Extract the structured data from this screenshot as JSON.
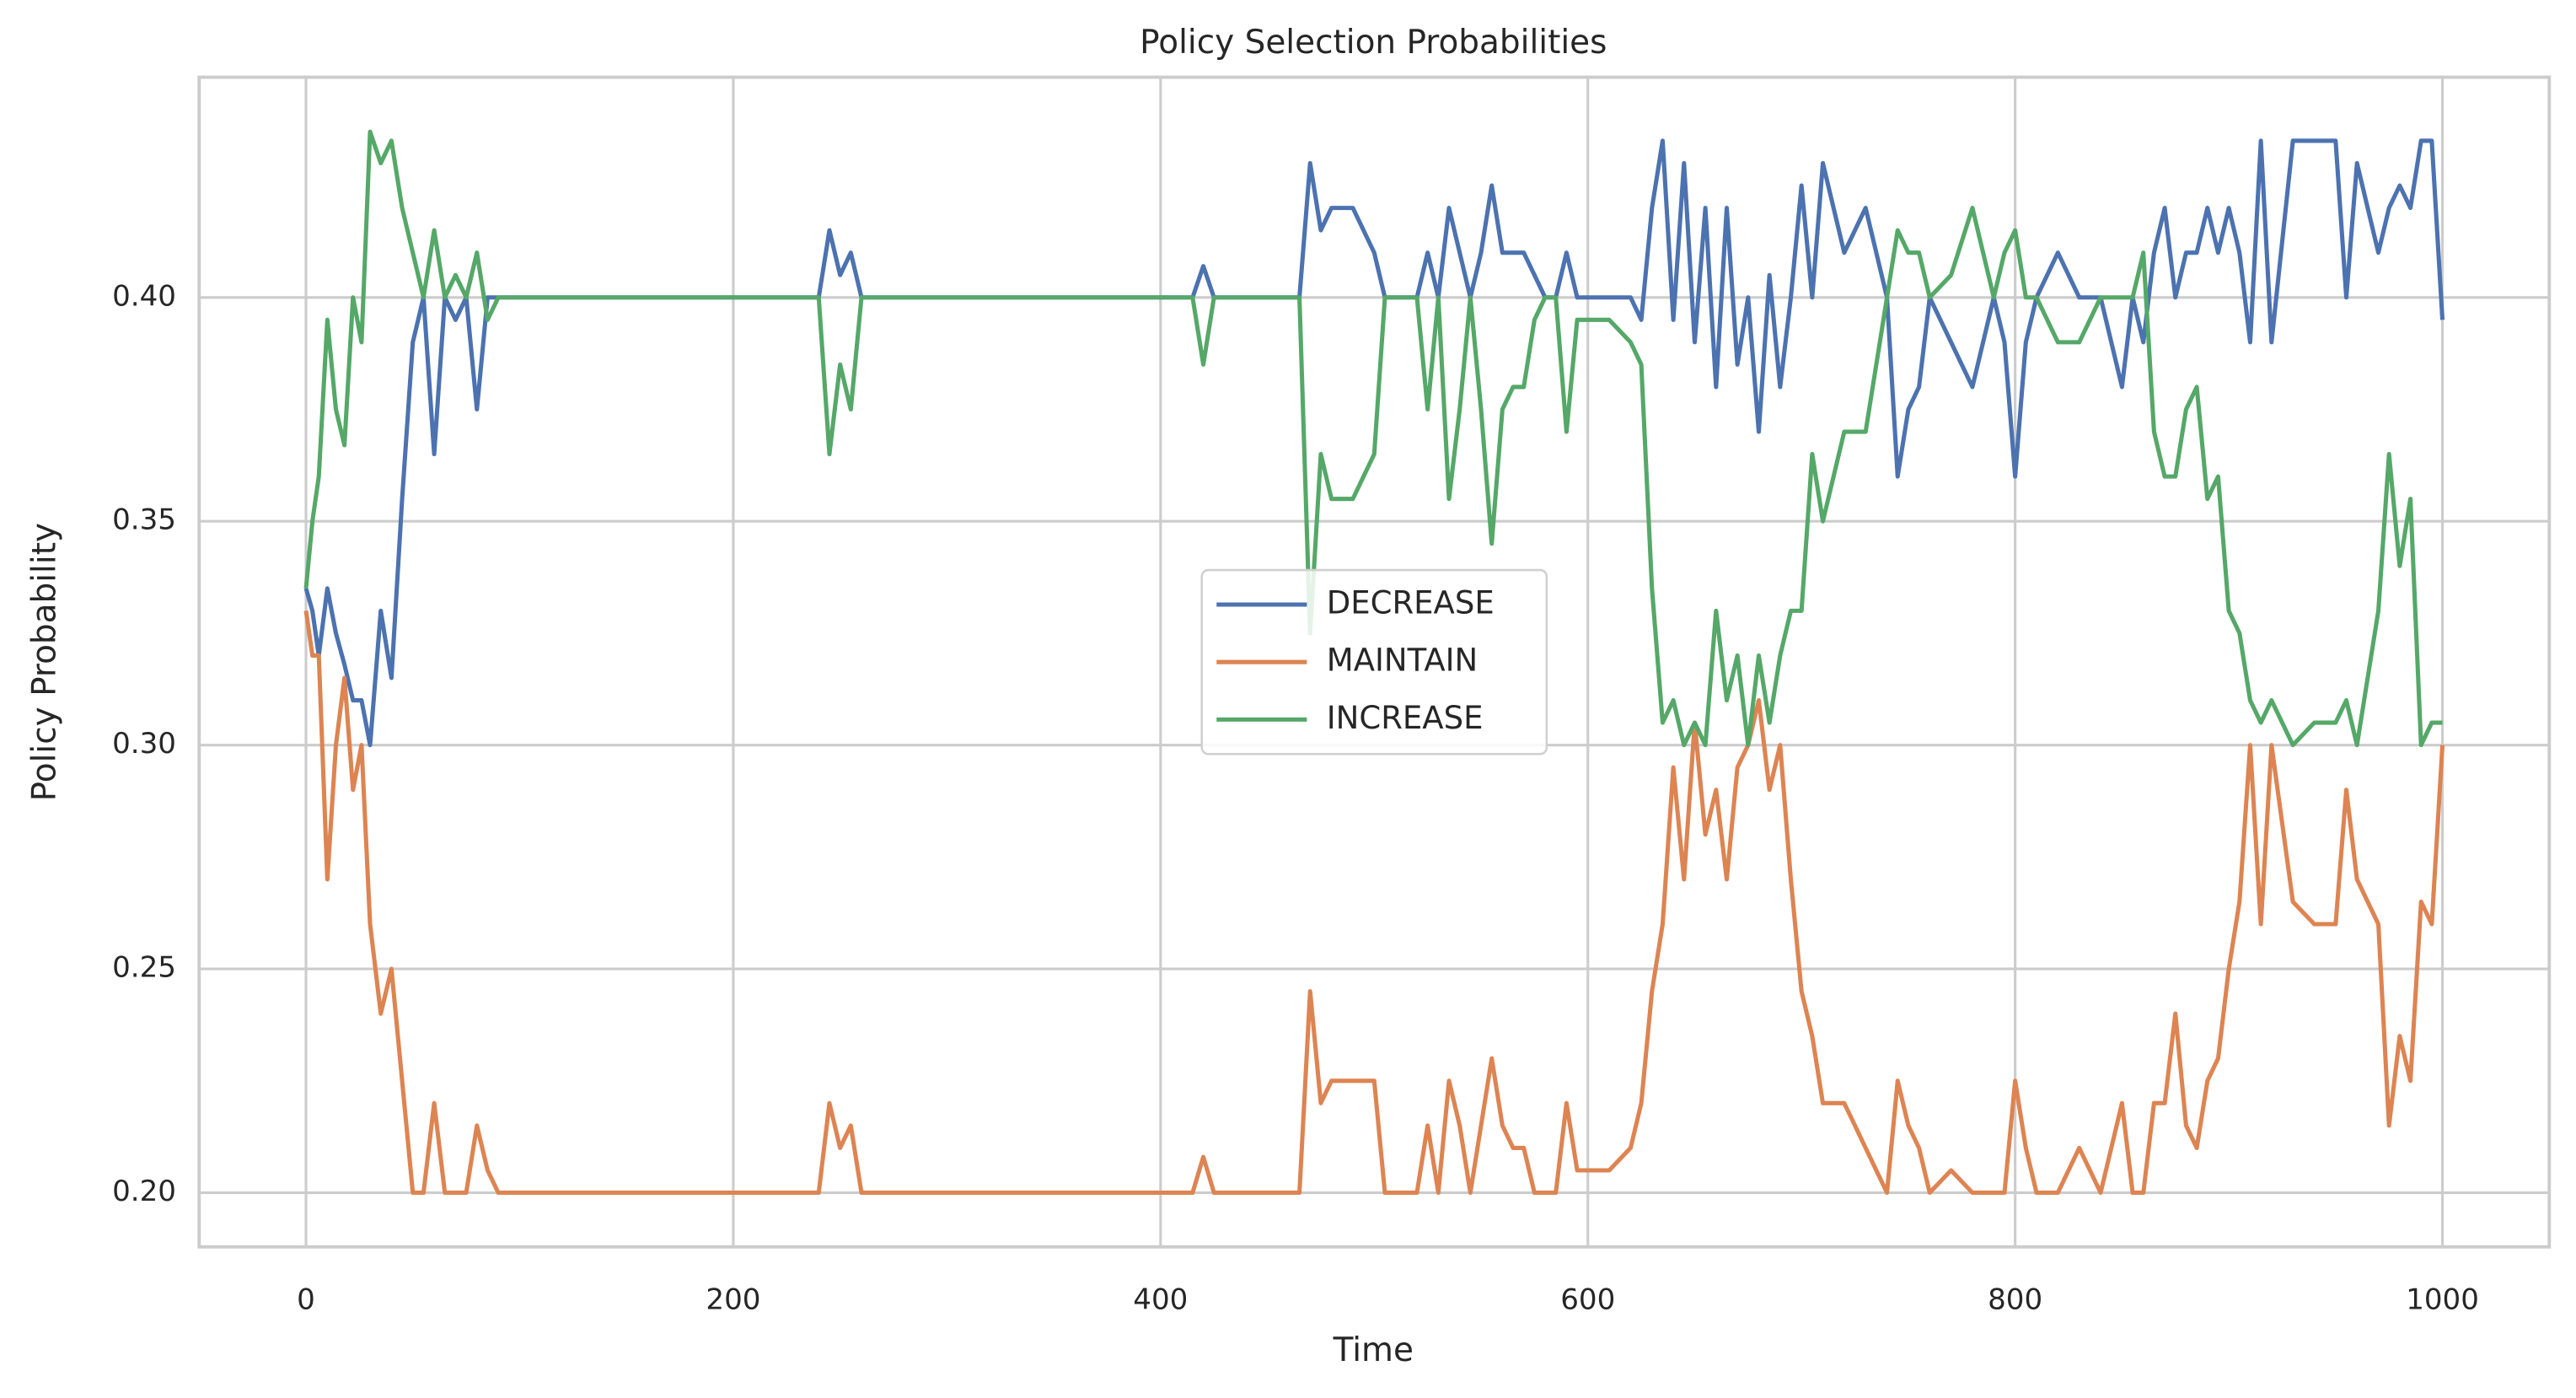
{
  "chart_data": {
    "type": "line",
    "title": "Policy Selection Probabilities",
    "x_label": "Time",
    "y_label": "Policy Probability",
    "x": [
      0,
      3,
      6,
      10,
      14,
      18,
      22,
      26,
      30,
      35,
      40,
      45,
      50,
      55,
      60,
      65,
      70,
      75,
      80,
      85,
      90,
      240,
      245,
      250,
      255,
      260,
      415,
      420,
      425,
      465,
      470,
      475,
      480,
      485,
      490,
      500,
      505,
      520,
      525,
      530,
      535,
      540,
      545,
      550,
      555,
      560,
      565,
      570,
      575,
      580,
      585,
      590,
      595,
      600,
      610,
      620,
      625,
      630,
      635,
      640,
      645,
      650,
      655,
      660,
      665,
      670,
      675,
      680,
      685,
      690,
      695,
      700,
      705,
      710,
      720,
      730,
      740,
      745,
      750,
      755,
      760,
      770,
      780,
      790,
      795,
      800,
      805,
      810,
      820,
      830,
      840,
      850,
      855,
      860,
      865,
      870,
      875,
      880,
      885,
      890,
      895,
      900,
      905,
      910,
      915,
      920,
      930,
      940,
      950,
      955,
      960,
      970,
      975,
      980,
      985,
      990,
      995,
      1000
    ],
    "series": [
      {
        "name": "DECREASE",
        "color": "#4c72b0",
        "values": [
          0.335,
          0.33,
          0.32,
          0.335,
          0.325,
          0.318,
          0.31,
          0.31,
          0.3,
          0.33,
          0.315,
          0.355,
          0.39,
          0.4,
          0.365,
          0.4,
          0.395,
          0.4,
          0.375,
          0.4,
          0.4,
          0.4,
          0.415,
          0.405,
          0.41,
          0.4,
          0.4,
          0.407,
          0.4,
          0.4,
          0.43,
          0.415,
          0.42,
          0.42,
          0.42,
          0.41,
          0.4,
          0.4,
          0.41,
          0.4,
          0.42,
          0.41,
          0.4,
          0.41,
          0.425,
          0.41,
          0.41,
          0.41,
          0.405,
          0.4,
          0.4,
          0.41,
          0.4,
          0.4,
          0.4,
          0.4,
          0.395,
          0.42,
          0.435,
          0.395,
          0.43,
          0.39,
          0.42,
          0.38,
          0.42,
          0.385,
          0.4,
          0.37,
          0.405,
          0.38,
          0.4,
          0.425,
          0.4,
          0.43,
          0.41,
          0.42,
          0.4,
          0.36,
          0.375,
          0.38,
          0.4,
          0.39,
          0.38,
          0.4,
          0.39,
          0.36,
          0.39,
          0.4,
          0.41,
          0.4,
          0.4,
          0.38,
          0.4,
          0.39,
          0.41,
          0.42,
          0.4,
          0.41,
          0.41,
          0.42,
          0.41,
          0.42,
          0.41,
          0.39,
          0.435,
          0.39,
          0.435,
          0.435,
          0.435,
          0.4,
          0.43,
          0.41,
          0.42,
          0.425,
          0.42,
          0.435,
          0.435,
          0.395
        ]
      },
      {
        "name": "MAINTAIN",
        "color": "#dd8452",
        "values": [
          0.33,
          0.32,
          0.32,
          0.27,
          0.3,
          0.315,
          0.29,
          0.3,
          0.26,
          0.24,
          0.25,
          0.225,
          0.2,
          0.2,
          0.22,
          0.2,
          0.2,
          0.2,
          0.215,
          0.205,
          0.2,
          0.2,
          0.22,
          0.21,
          0.215,
          0.2,
          0.2,
          0.208,
          0.2,
          0.2,
          0.245,
          0.22,
          0.225,
          0.225,
          0.225,
          0.225,
          0.2,
          0.2,
          0.215,
          0.2,
          0.225,
          0.215,
          0.2,
          0.215,
          0.23,
          0.215,
          0.21,
          0.21,
          0.2,
          0.2,
          0.2,
          0.22,
          0.205,
          0.205,
          0.205,
          0.21,
          0.22,
          0.245,
          0.26,
          0.295,
          0.27,
          0.305,
          0.28,
          0.29,
          0.27,
          0.295,
          0.3,
          0.31,
          0.29,
          0.3,
          0.27,
          0.245,
          0.235,
          0.22,
          0.22,
          0.21,
          0.2,
          0.225,
          0.215,
          0.21,
          0.2,
          0.205,
          0.2,
          0.2,
          0.2,
          0.225,
          0.21,
          0.2,
          0.2,
          0.21,
          0.2,
          0.22,
          0.2,
          0.2,
          0.22,
          0.22,
          0.24,
          0.215,
          0.21,
          0.225,
          0.23,
          0.25,
          0.265,
          0.3,
          0.26,
          0.3,
          0.265,
          0.26,
          0.26,
          0.29,
          0.27,
          0.26,
          0.215,
          0.235,
          0.225,
          0.265,
          0.26,
          0.3
        ]
      },
      {
        "name": "INCREASE",
        "color": "#55a868",
        "values": [
          0.335,
          0.35,
          0.36,
          0.395,
          0.375,
          0.367,
          0.4,
          0.39,
          0.437,
          0.43,
          0.435,
          0.42,
          0.41,
          0.4,
          0.415,
          0.4,
          0.405,
          0.4,
          0.41,
          0.395,
          0.4,
          0.4,
          0.365,
          0.385,
          0.375,
          0.4,
          0.4,
          0.385,
          0.4,
          0.4,
          0.325,
          0.365,
          0.355,
          0.355,
          0.355,
          0.365,
          0.4,
          0.4,
          0.375,
          0.4,
          0.355,
          0.375,
          0.4,
          0.375,
          0.345,
          0.375,
          0.38,
          0.38,
          0.395,
          0.4,
          0.4,
          0.37,
          0.395,
          0.395,
          0.395,
          0.39,
          0.385,
          0.335,
          0.305,
          0.31,
          0.3,
          0.305,
          0.3,
          0.33,
          0.31,
          0.32,
          0.3,
          0.32,
          0.305,
          0.32,
          0.33,
          0.33,
          0.365,
          0.35,
          0.37,
          0.37,
          0.4,
          0.415,
          0.41,
          0.41,
          0.4,
          0.405,
          0.42,
          0.4,
          0.41,
          0.415,
          0.4,
          0.4,
          0.39,
          0.39,
          0.4,
          0.4,
          0.4,
          0.41,
          0.37,
          0.36,
          0.36,
          0.375,
          0.38,
          0.355,
          0.36,
          0.33,
          0.325,
          0.31,
          0.305,
          0.31,
          0.3,
          0.305,
          0.305,
          0.31,
          0.3,
          0.33,
          0.365,
          0.34,
          0.355,
          0.3,
          0.305,
          0.305
        ]
      }
    ],
    "xlim": [
      -50,
      1050
    ],
    "xticks": [
      0,
      200,
      400,
      600,
      800,
      1000
    ],
    "ylim": [
      0.1879,
      0.4492
    ],
    "yticks": [
      {
        "value": 0.2,
        "label": "0.20"
      },
      0.25,
      {
        "value": 0.3,
        "label": "0.30"
      },
      0.35,
      {
        "value": 0.4,
        "label": "0.40"
      }
    ],
    "grid": true,
    "legend": "center"
  }
}
